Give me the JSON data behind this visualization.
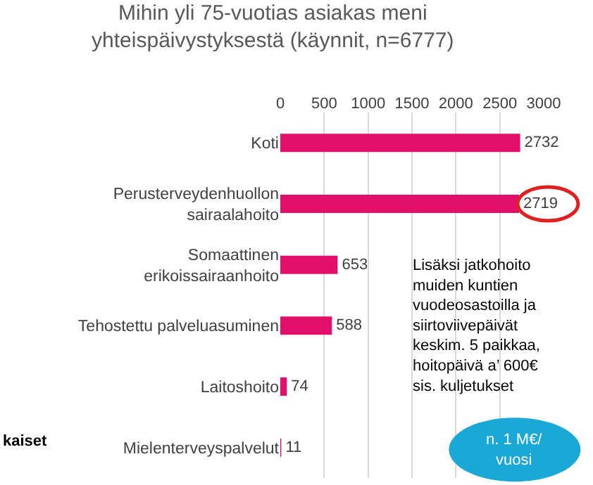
{
  "chart_data": {
    "type": "bar",
    "orientation": "horizontal",
    "title": "Mihin yli 75-vuotias asiakas meni yhteispäivystyksestä (käynnit, n=6777)",
    "categories": [
      "Koti",
      "Perusterveydenhuollon sairaalahoito",
      "Somaattinen erikoissairaanhoito",
      "Tehostettu palveluasuminen",
      "Laitoshoito",
      "Mielenterveyspalvelut"
    ],
    "values": [
      2732,
      2719,
      653,
      588,
      74,
      11
    ],
    "color": "#e2106a",
    "xlim": [
      0,
      3000
    ],
    "xticks": [
      0,
      500,
      1000,
      1500,
      2000,
      2500,
      3000
    ],
    "grid": "x",
    "data_labels": true,
    "annotations": [
      "Lisäksi jatkohoito muiden kuntien vuodeosastoilla ja siirtoviivepäivät keskim. 5 paikkaa, hoitopäivä a’ 600€ sis. kuljetukset",
      "n. 1 M€/ vuosi",
      "kaiset"
    ]
  }
}
